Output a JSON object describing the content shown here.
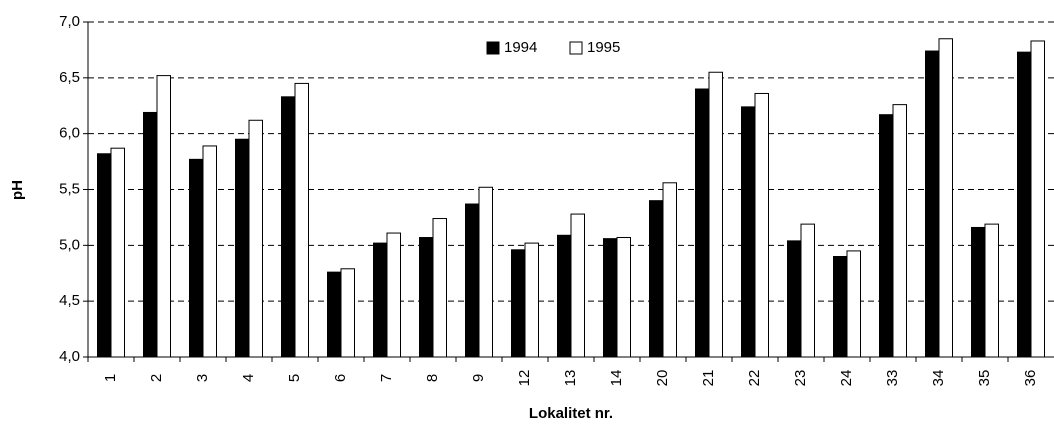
{
  "chart_data": {
    "type": "bar",
    "xlabel": "Lokalitet nr.",
    "ylabel": "pH",
    "categories": [
      "1",
      "2",
      "3",
      "4",
      "5",
      "6",
      "7",
      "8",
      "9",
      "12",
      "13",
      "14",
      "20",
      "21",
      "22",
      "23",
      "24",
      "33",
      "34",
      "35",
      "36"
    ],
    "series": [
      {
        "name": "1994",
        "color": "#000000",
        "values": [
          5.82,
          6.19,
          5.77,
          5.95,
          6.33,
          4.76,
          5.02,
          5.07,
          5.37,
          4.96,
          5.09,
          5.06,
          5.4,
          6.4,
          6.24,
          5.04,
          4.9,
          6.17,
          6.74,
          5.16,
          6.73
        ]
      },
      {
        "name": "1995",
        "color": "#ffffff",
        "values": [
          5.87,
          6.52,
          5.89,
          6.12,
          6.45,
          4.79,
          5.11,
          5.24,
          5.52,
          5.02,
          5.28,
          5.07,
          5.56,
          6.55,
          6.36,
          5.19,
          4.95,
          6.26,
          6.85,
          5.19,
          6.83
        ]
      }
    ],
    "ylim": [
      4.0,
      7.0
    ],
    "yticks": [
      {
        "value": 4.0,
        "label": "4,0"
      },
      {
        "value": 4.5,
        "label": "4,5"
      },
      {
        "value": 5.0,
        "label": "5,0"
      },
      {
        "value": 5.5,
        "label": "5,5"
      },
      {
        "value": 6.0,
        "label": "6,0"
      },
      {
        "value": 6.5,
        "label": "6,5"
      },
      {
        "value": 7.0,
        "label": "7,0"
      }
    ],
    "grid": true,
    "legend": "top"
  }
}
